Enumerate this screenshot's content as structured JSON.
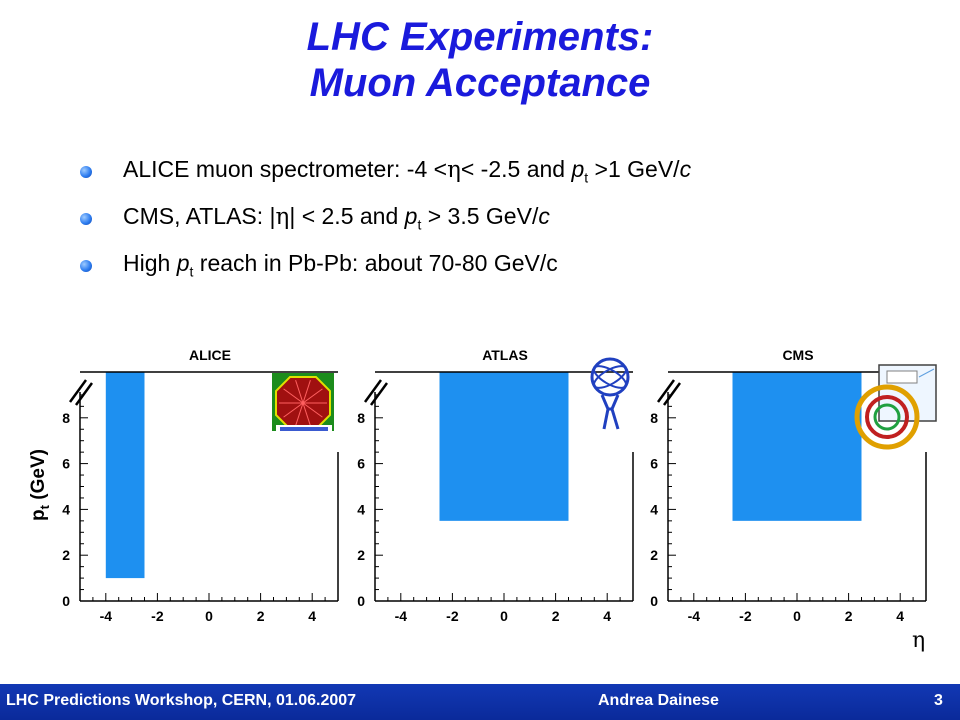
{
  "title": {
    "line1": "LHC Experiments:",
    "line2": "Muon Acceptance"
  },
  "bullets": [
    {
      "parts": [
        "ALICE muon spectrometer: -4 <",
        "η",
        "< -2.5 and ",
        "p",
        "t",
        " >1 GeV/",
        "c"
      ]
    },
    {
      "parts": [
        "CMS, ATLAS: |",
        "η",
        "| < 2.5 and ",
        "p",
        "t",
        " > 3.5 GeV/",
        "c"
      ]
    },
    {
      "parts": [
        "High ",
        "p",
        "t",
        " reach in Pb-Pb: about 70-80 GeV/c"
      ]
    }
  ],
  "colors": {
    "title": "#1a1adc",
    "acceptance": "#1e90f0",
    "footer": "#1238b4",
    "bullet": "#2e7df0"
  },
  "axis_labels": {
    "y_main": "p",
    "y_sub": "t",
    "y_unit": " (GeV)",
    "x": "η"
  },
  "chart_data": [
    {
      "type": "area",
      "title": "ALICE",
      "xlim": [
        -5,
        5
      ],
      "ylim": [
        0,
        10
      ],
      "x_ticks": [
        "-4",
        "-2",
        "0",
        "2",
        "4"
      ],
      "y_ticks": [
        "0",
        "2",
        "4",
        "6",
        "8"
      ],
      "region": {
        "x": [
          -4,
          -2.5
        ],
        "y": [
          1,
          10
        ]
      },
      "logo": "alice-logo-icon"
    },
    {
      "type": "area",
      "title": "ATLAS",
      "xlim": [
        -5,
        5
      ],
      "ylim": [
        0,
        10
      ],
      "x_ticks": [
        "-4",
        "-2",
        "0",
        "2",
        "4"
      ],
      "y_ticks": [
        "0",
        "2",
        "4",
        "6",
        "8"
      ],
      "region": {
        "x": [
          -2.5,
          2.5
        ],
        "y": [
          3.5,
          10
        ]
      },
      "logo": "atlas-logo-icon"
    },
    {
      "type": "area",
      "title": "CMS",
      "xlim": [
        -5,
        5
      ],
      "ylim": [
        0,
        10
      ],
      "x_ticks": [
        "-4",
        "-2",
        "0",
        "2",
        "4"
      ],
      "y_ticks": [
        "0",
        "2",
        "4",
        "6",
        "8"
      ],
      "region": {
        "x": [
          -2.5,
          2.5
        ],
        "y": [
          3.5,
          10
        ]
      },
      "logo": "cms-logo-icon"
    }
  ],
  "footer": {
    "left": "LHC Predictions Workshop, CERN, 01.06.2007",
    "center": "Andrea Dainese",
    "page": "3"
  }
}
